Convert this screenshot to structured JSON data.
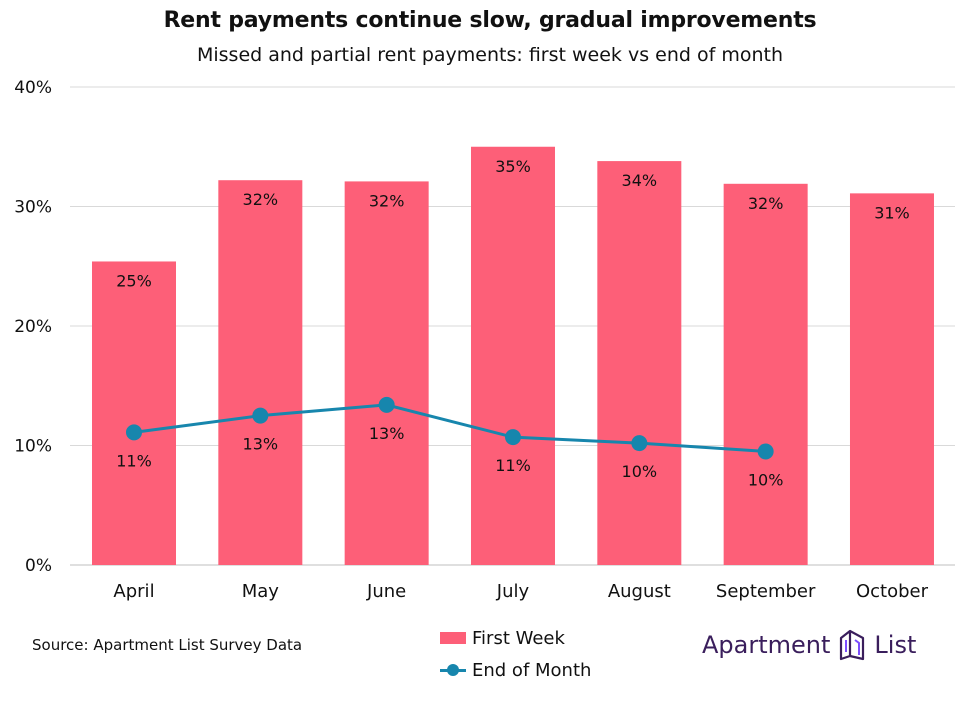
{
  "title": "Rent payments continue slow, gradual improvements",
  "subtitle": "Missed and partial rent payments: first week vs end of month",
  "source": "Source: Apartment List Survey Data",
  "brand": {
    "word1": "Apartment",
    "word2": "List",
    "color": "#3a1e5c",
    "icon": "apartment-list-logo-icon"
  },
  "colors": {
    "first_week": "#fd5f78",
    "end_of_month": "#1786ad",
    "grid": "#d9d9d9"
  },
  "chart_data": {
    "type": "bar",
    "categories": [
      "April",
      "May",
      "June",
      "July",
      "August",
      "September",
      "October"
    ],
    "series": [
      {
        "name": "First Week",
        "type": "bar",
        "values": [
          25.4,
          32.2,
          32.1,
          35.0,
          33.8,
          31.9,
          31.1
        ],
        "labels": [
          "25%",
          "32%",
          "32%",
          "35%",
          "34%",
          "32%",
          "31%"
        ]
      },
      {
        "name": "End of Month",
        "type": "line",
        "values": [
          11.1,
          12.5,
          13.4,
          10.7,
          10.2,
          9.5,
          null
        ],
        "labels": [
          "11%",
          "13%",
          "13%",
          "11%",
          "10%",
          "10%",
          null
        ]
      }
    ],
    "ylim": [
      0,
      40
    ],
    "yticks": [
      0,
      10,
      20,
      30,
      40
    ],
    "ytick_labels": [
      "0%",
      "10%",
      "20%",
      "30%",
      "40%"
    ],
    "grid": true,
    "legend": "bottom-center"
  }
}
